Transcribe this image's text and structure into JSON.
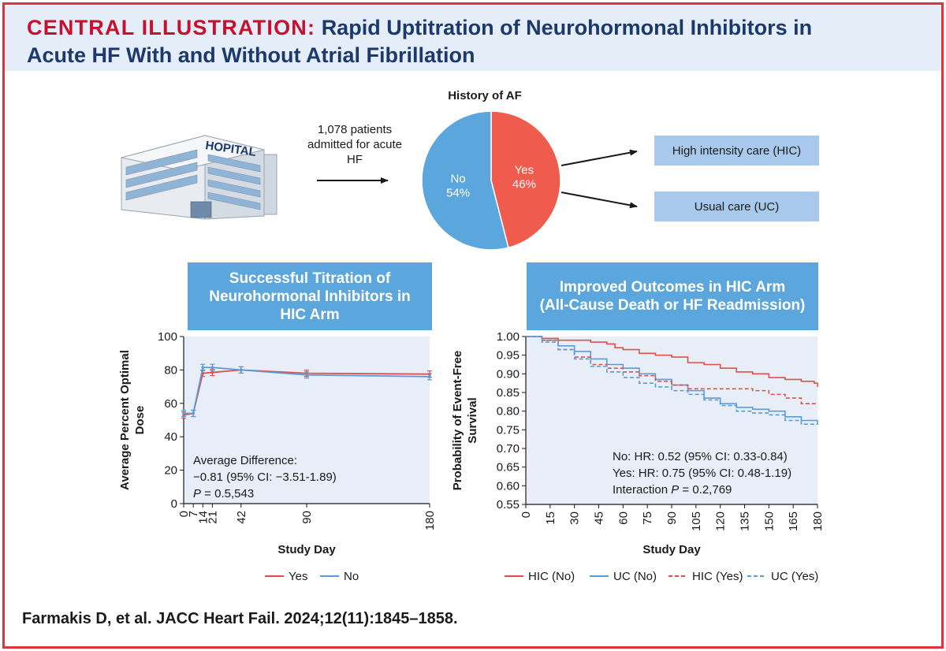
{
  "header": {
    "label": "CENTRAL ILLUSTRATION:",
    "title_line1": "Rapid Uptitration of Neurohormonal Inhibitors in",
    "title_line2": "Acute HF With and Without Atrial Fibrillation"
  },
  "flow": {
    "building_sign": "HOPITAL",
    "patients_line1": "1,078 patients",
    "patients_line2": "admitted for acute HF",
    "af_title": "History of AF",
    "care_hic": "High intensity care (HIC)",
    "care_uc": "Usual care (UC)"
  },
  "colors": {
    "accent_red": "#e0323a",
    "navy": "#1b3a6b",
    "pie_yes": "#ef5b4c",
    "pie_no": "#5ba7dd",
    "panel_header": "#5ba7dd",
    "box_fill": "#a8c9ec",
    "plot_bg": "#e7eef8"
  },
  "panels": {
    "left_title": [
      "Successful Titration of",
      "Neurohormonal Inhibitors in",
      "HIC Arm"
    ],
    "right_title": [
      "Improved Outcomes in HIC Arm",
      "(All-Cause Death or HF Readmission)"
    ]
  },
  "citation": "Farmakis D, et al. JACC Heart Fail. 2024;12(11):1845–1858.",
  "chart_data": [
    {
      "type": "pie",
      "title": "History of AF",
      "slices": [
        {
          "label": "Yes",
          "value": 46,
          "text": "46%",
          "color": "#ef5b4c"
        },
        {
          "label": "No",
          "value": 54,
          "text": "54%",
          "color": "#5ba7dd"
        }
      ]
    },
    {
      "type": "line",
      "xlabel": "Study Day",
      "ylabel": [
        "Average Percent Optimal",
        "Dose"
      ],
      "x_ticks": [
        0,
        7,
        14,
        21,
        42,
        90,
        180
      ],
      "x_tick_labels": [
        "0",
        "7",
        "14",
        "21",
        "42",
        "90",
        "180"
      ],
      "y_ticks": [
        0,
        20,
        40,
        60,
        80,
        100
      ],
      "y_tick_labels": [
        "0",
        "20",
        "40",
        "60",
        "80",
        "100"
      ],
      "xlim": [
        0,
        180
      ],
      "ylim": [
        0,
        100
      ],
      "grid": false,
      "legend": "bottom",
      "annotation": {
        "line1": "Average Difference:",
        "line2": "−0.81 (95% CI: −3.51-1.89)",
        "p_label": "P",
        "p_value": " = 0.5,543"
      },
      "series": [
        {
          "name": "Yes",
          "color": "#e0504a",
          "x": [
            0,
            7,
            14,
            21,
            42,
            90,
            180
          ],
          "y": [
            53,
            54,
            78,
            78.5,
            80,
            78,
            77.5
          ]
        },
        {
          "name": "No",
          "color": "#5b9bd5",
          "x": [
            0,
            7,
            14,
            21,
            42,
            90,
            180
          ],
          "y": [
            54,
            54,
            81.5,
            81.5,
            80,
            77,
            76
          ]
        }
      ]
    },
    {
      "type": "line",
      "xlabel": "Study Day",
      "ylabel": [
        "Probability of Event-Free",
        "Survival"
      ],
      "x_ticks": [
        0,
        15,
        30,
        45,
        60,
        75,
        90,
        105,
        120,
        135,
        150,
        165,
        180
      ],
      "x_tick_labels": [
        "0",
        "15",
        "30",
        "45",
        "60",
        "75",
        "90",
        "105",
        "120",
        "135",
        "150",
        "165",
        "180"
      ],
      "y_ticks": [
        0.55,
        0.6,
        0.65,
        0.7,
        0.75,
        0.8,
        0.85,
        0.9,
        0.95,
        1.0
      ],
      "y_tick_labels": [
        "0.55",
        "0.60",
        "0.65",
        "0.70",
        "0.75",
        "0.80",
        "0.85",
        "0.90",
        "0.95",
        "1.00"
      ],
      "xlim": [
        0,
        180
      ],
      "ylim": [
        0.55,
        1.0
      ],
      "grid": false,
      "legend": "bottom",
      "annotations": [
        {
          "text": "No: HR: 0.52 (95% CI: 0.33-0.84)"
        },
        {
          "text": "Yes: HR: 0.75 (95% CI: 0.48-1.19)"
        },
        {
          "text": "Interaction ",
          "p_label": "P",
          "p_value": " = 0.2,769"
        }
      ],
      "series": [
        {
          "name": "HIC (No)",
          "color": "#e0504a",
          "dash": "solid",
          "x": [
            0,
            10,
            20,
            30,
            40,
            50,
            55,
            60,
            70,
            80,
            90,
            100,
            110,
            120,
            130,
            140,
            150,
            160,
            170,
            178,
            180
          ],
          "y": [
            1.0,
            0.995,
            0.99,
            0.99,
            0.985,
            0.98,
            0.97,
            0.965,
            0.955,
            0.95,
            0.945,
            0.93,
            0.925,
            0.915,
            0.905,
            0.9,
            0.89,
            0.885,
            0.88,
            0.875,
            0.865
          ]
        },
        {
          "name": "UC (No)",
          "color": "#5b9bd5",
          "dash": "solid",
          "x": [
            0,
            10,
            20,
            30,
            40,
            50,
            60,
            70,
            80,
            90,
            100,
            110,
            120,
            130,
            140,
            150,
            160,
            170,
            180
          ],
          "y": [
            1.0,
            0.99,
            0.975,
            0.96,
            0.94,
            0.925,
            0.915,
            0.9,
            0.885,
            0.87,
            0.855,
            0.835,
            0.82,
            0.81,
            0.805,
            0.8,
            0.785,
            0.775,
            0.77
          ]
        },
        {
          "name": "HIC (Yes)",
          "color": "#e0504a",
          "dash": "dashed",
          "x": [
            0,
            10,
            20,
            30,
            40,
            50,
            60,
            70,
            80,
            90,
            100,
            110,
            120,
            130,
            140,
            150,
            160,
            170,
            180
          ],
          "y": [
            1.0,
            0.99,
            0.965,
            0.945,
            0.925,
            0.915,
            0.905,
            0.895,
            0.88,
            0.87,
            0.86,
            0.86,
            0.86,
            0.86,
            0.855,
            0.845,
            0.835,
            0.82,
            0.82
          ]
        },
        {
          "name": "UC (Yes)",
          "color": "#5b9bd5",
          "dash": "dashed",
          "x": [
            0,
            10,
            20,
            30,
            40,
            50,
            60,
            70,
            80,
            90,
            100,
            110,
            120,
            130,
            140,
            150,
            160,
            170,
            180
          ],
          "y": [
            1.0,
            0.985,
            0.965,
            0.94,
            0.92,
            0.905,
            0.89,
            0.875,
            0.865,
            0.855,
            0.845,
            0.83,
            0.815,
            0.8,
            0.795,
            0.79,
            0.775,
            0.765,
            0.77
          ]
        }
      ]
    }
  ]
}
